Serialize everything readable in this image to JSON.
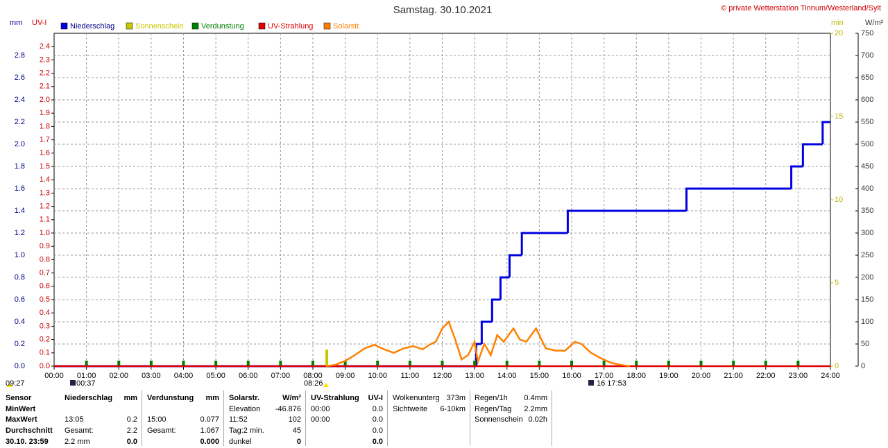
{
  "chart_data": {
    "type": "line",
    "title": "Samstag. 30.10.2021",
    "credit": "© private Wetterstation Tinnum/Westerland/Sylt",
    "y_label": "mm",
    "uv_label": "UV-I",
    "min_label": "min",
    "w_label": "W/m²",
    "grid": true,
    "xlim": [
      0,
      24
    ],
    "xticks": [
      {
        "value": 0,
        "label": "00:00"
      },
      {
        "value": 1,
        "label": "01:00"
      },
      {
        "value": 2,
        "label": "02:00"
      },
      {
        "value": 3,
        "label": "03:00"
      },
      {
        "value": 4,
        "label": "04:00"
      },
      {
        "value": 5,
        "label": "05:00"
      },
      {
        "value": 6,
        "label": "06:00"
      },
      {
        "value": 7,
        "label": "07:00"
      },
      {
        "value": 8,
        "label": "08:00"
      },
      {
        "value": 9,
        "label": "09:00"
      },
      {
        "value": 10,
        "label": "10:00"
      },
      {
        "value": 11,
        "label": "11:00"
      },
      {
        "value": 12,
        "label": "12:00"
      },
      {
        "value": 13,
        "label": "13:00"
      },
      {
        "value": 14,
        "label": "14:00"
      },
      {
        "value": 15,
        "label": "15:00"
      },
      {
        "value": 16,
        "label": "16:00"
      },
      {
        "value": 17,
        "label": "17:00"
      },
      {
        "value": 18,
        "label": "18:00"
      },
      {
        "value": 19,
        "label": "19:00"
      },
      {
        "value": 20,
        "label": "20:00"
      },
      {
        "value": 21,
        "label": "21:00"
      },
      {
        "value": 22,
        "label": "22:00"
      },
      {
        "value": 23,
        "label": "23:00"
      },
      {
        "value": 24,
        "label": "24:00"
      }
    ],
    "ylim": [
      0,
      3.0
    ],
    "yticks": [
      {
        "value": 0,
        "label": "0.0"
      },
      0.2,
      0.4,
      0.6,
      0.8,
      {
        "value": 1,
        "label": "1.0"
      },
      1.2,
      1.4,
      1.6,
      1.8,
      {
        "value": 2,
        "label": "2.0"
      },
      2.2,
      2.4,
      2.6,
      2.8
    ],
    "uvlim": [
      0,
      2.5
    ],
    "uvticks": [
      {
        "value": 0,
        "label": "0.0"
      },
      0.1,
      0.2,
      0.3,
      0.4,
      0.5,
      0.6,
      0.7,
      0.8,
      0.9,
      {
        "value": 1,
        "label": "1.0"
      },
      1.1,
      1.2,
      1.3,
      1.4,
      1.5,
      1.6,
      1.7,
      1.8,
      1.9,
      {
        "value": 2,
        "label": "2.0"
      },
      2.1,
      2.2,
      2.3,
      2.4
    ],
    "y2lim": [
      0,
      20
    ],
    "y2ticks": [
      0,
      5,
      10,
      15,
      20
    ],
    "y3lim": [
      0,
      750
    ],
    "y3ticks": [
      0,
      50,
      100,
      150,
      200,
      250,
      300,
      350,
      400,
      450,
      500,
      550,
      600,
      650,
      700,
      750
    ],
    "series": [
      {
        "name": "Niederschlag",
        "color": "#0000e0",
        "axis": "y",
        "step": true,
        "x": [
          0,
          13.05,
          13.22,
          13.54,
          13.8,
          14.08,
          14.46,
          15.88,
          19.55,
          22.79,
          23.15,
          23.76,
          24
        ],
        "values": [
          0,
          0.2,
          0.4,
          0.6,
          0.8,
          1.0,
          1.2,
          1.4,
          1.6,
          1.8,
          2.0,
          2.2,
          2.2
        ]
      },
      {
        "name": "Sonnenschein",
        "color": "#c8c800",
        "axis": "y2",
        "bars": true,
        "x": [
          8.43
        ],
        "values": [
          1
        ]
      },
      {
        "name": "Verdunstung",
        "color": "#008000",
        "axis": "y",
        "bars": true,
        "x": [
          1,
          2,
          3,
          4,
          5,
          6,
          7,
          8,
          9,
          10,
          11,
          12,
          13,
          14,
          15,
          16,
          17,
          18,
          19,
          20,
          21,
          22,
          23
        ],
        "values": [
          0.05,
          0.05,
          0.05,
          0.05,
          0.05,
          0.05,
          0.05,
          0.05,
          0.05,
          0.05,
          0.05,
          0.05,
          0.05,
          0.05,
          0.05,
          0.05,
          0.05,
          0.05,
          0.05,
          0.05,
          0.05,
          0.05,
          0.05
        ]
      },
      {
        "name": "UV-Strahlung",
        "color": "#e00000",
        "axis": "uv",
        "x": [
          0,
          24
        ],
        "values": [
          0,
          0
        ]
      },
      {
        "name": "Solarstr.",
        "color": "#ff8000",
        "axis": "y3",
        "x": [
          8.4,
          8.7,
          9.0,
          9.3,
          9.6,
          9.9,
          10.2,
          10.5,
          10.8,
          11.1,
          11.4,
          11.6,
          11.8,
          12.0,
          12.2,
          12.4,
          12.6,
          12.8,
          13.0,
          13.1,
          13.3,
          13.5,
          13.7,
          13.9,
          14.2,
          14.4,
          14.6,
          14.9,
          15.2,
          15.5,
          15.8,
          16.1,
          16.3,
          16.6,
          16.9,
          17.2,
          17.5,
          17.8
        ],
        "values": [
          0,
          3,
          12,
          25,
          40,
          48,
          38,
          30,
          40,
          45,
          38,
          48,
          55,
          85,
          100,
          60,
          15,
          25,
          55,
          10,
          50,
          25,
          70,
          55,
          85,
          60,
          55,
          85,
          40,
          35,
          35,
          55,
          50,
          30,
          18,
          8,
          3,
          0
        ]
      }
    ],
    "markers": [
      "09:27",
      "00:37",
      "08:26",
      "16  17:53"
    ]
  },
  "table": {
    "sensor": [
      "Sensor",
      "MinWert",
      "MaxWert",
      "Durchschnitt",
      "30.10. 23:59"
    ],
    "sections": [
      {
        "head": [
          "Niederschlag",
          "mm"
        ],
        "rows": [
          [
            "",
            ""
          ],
          [
            "13:05",
            "0.2"
          ],
          [
            "Gesamt:",
            "2.2"
          ],
          [
            "2.2 mm",
            "0.0"
          ]
        ]
      },
      {
        "head": [
          "Verdunstung",
          "mm"
        ],
        "rows": [
          [
            "",
            ""
          ],
          [
            "15:00",
            "0.077"
          ],
          [
            "Gesamt:",
            "1.067"
          ],
          [
            "",
            "0.000"
          ]
        ]
      },
      {
        "head": [
          "Solarstr.",
          "W/m²"
        ],
        "rows": [
          [
            "Elevation",
            "-46.876"
          ],
          [
            "11:52",
            "102"
          ],
          [
            "Tag:2 min.",
            "45"
          ],
          [
            "dunkel",
            "0"
          ]
        ]
      },
      {
        "head": [
          "UV-Strahlung",
          "UV-I"
        ],
        "rows": [
          [
            "00:00",
            "0.0"
          ],
          [
            "00:00",
            "0.0"
          ],
          [
            "",
            "0.0"
          ],
          [
            "",
            "0.0"
          ]
        ]
      },
      {
        "head": [
          "",
          ""
        ],
        "rows": [
          [
            "Wolkenunterg",
            "373m"
          ],
          [
            "Sichtweite",
            "6-10km"
          ]
        ]
      },
      {
        "head": [
          "",
          ""
        ],
        "rows": [
          [
            "Regen/1h",
            "0.4mm"
          ],
          [
            "Regen/Tag",
            "2.2mm"
          ],
          [
            "Sonnenschein",
            "0.02h"
          ]
        ]
      }
    ]
  }
}
